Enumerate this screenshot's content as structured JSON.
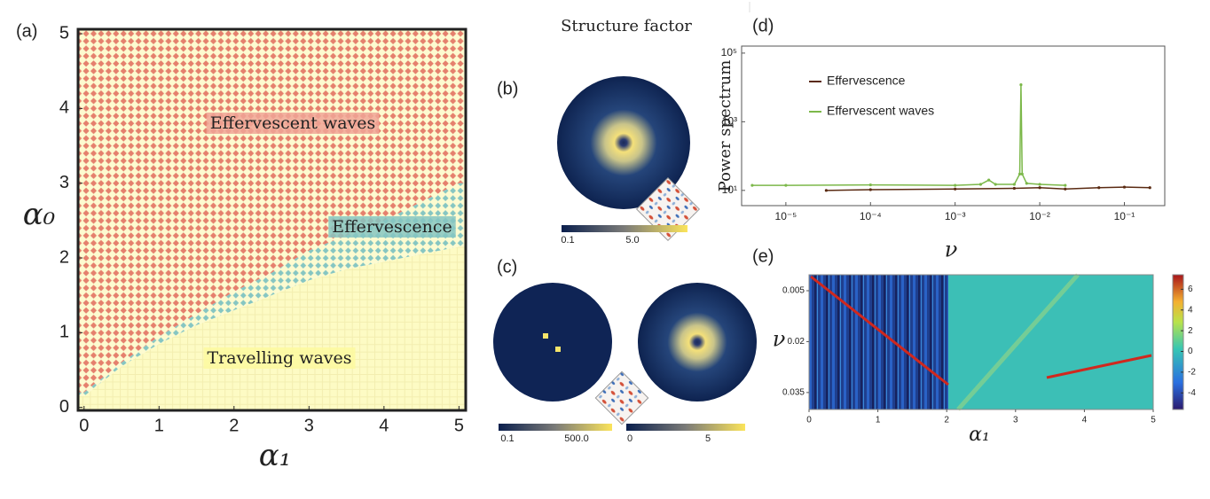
{
  "chart_data": [
    {
      "type": "phase",
      "label": "(a)",
      "xlabel": "α₁",
      "ylabel": "α₀",
      "x": [
        0,
        0.5,
        1,
        1.5,
        2,
        2.5,
        3,
        3.5,
        4,
        4.5,
        5
      ],
      "series": [
        {
          "name": "Travelling waves",
          "color": "#fbf7a8",
          "values": [
            0.15,
            0.55,
            0.85,
            1.1,
            1.3,
            1.5,
            1.7,
            1.85,
            1.95,
            2.05,
            2.15
          ]
        },
        {
          "name": "Effervescence",
          "color": "#86c6c2",
          "values": [
            0.2,
            0.6,
            0.95,
            1.25,
            1.55,
            1.8,
            2.1,
            2.3,
            2.5,
            2.75,
            3.0
          ]
        },
        {
          "name": "Effervescent waves",
          "color": "#e5806d"
        }
      ],
      "xlim": [
        -0.08,
        5.09
      ],
      "ylim": [
        -0.04,
        5.06
      ],
      "xticks": [
        0,
        1,
        2,
        3,
        4,
        5
      ],
      "yticks": [
        0,
        1,
        2,
        3,
        4,
        5
      ]
    },
    {
      "type": "line",
      "label": "(d)",
      "ylabel": "Power spectrum",
      "xlabel": "ν",
      "log_x": true,
      "log_y": true,
      "legend": "upper left",
      "series": [
        {
          "name": "Effervescence",
          "color": "#5a2a12",
          "x": [
            3e-05,
            0.0001,
            0.001,
            0.005,
            0.01,
            0.02,
            0.05,
            0.1,
            0.2
          ],
          "values": [
            10,
            10.5,
            11,
            11.5,
            12,
            11,
            12,
            12.5,
            12
          ]
        },
        {
          "name": "Effervescent waves",
          "color": "#7cb84a",
          "x": [
            4e-06,
            1e-05,
            0.0001,
            0.001,
            0.002,
            0.0025,
            0.003,
            0.005,
            0.0058,
            0.006,
            0.0062,
            0.007,
            0.01,
            0.02
          ],
          "values": [
            14,
            14,
            14.5,
            14,
            15,
            20,
            15,
            15,
            30,
            12000,
            30,
            16,
            15,
            14
          ]
        }
      ],
      "xlim": [
        3e-06,
        0.3
      ],
      "ylim": [
        3.6,
        160000
      ],
      "xticks": [
        {
          "value": 1e-05,
          "label": "10⁻⁵"
        },
        {
          "value": 0.0001,
          "label": "10⁻⁴"
        },
        {
          "value": 0.001,
          "label": "10⁻³"
        },
        {
          "value": 0.01,
          "label": "10⁻²"
        },
        {
          "value": 0.1,
          "label": "10⁻¹"
        }
      ],
      "yticks": [
        {
          "value": 10,
          "label": "10¹"
        },
        {
          "value": 1000,
          "label": "10³"
        },
        {
          "value": 100000,
          "label": "10⁵"
        }
      ]
    },
    {
      "type": "heatmap",
      "label": "(e)",
      "xlabel": "α₁",
      "ylabel": "ν",
      "y_inverted": true,
      "xlim": [
        0,
        5
      ],
      "ylim": [
        0.0003,
        0.04
      ],
      "xticks": [
        0,
        1,
        2,
        3,
        4,
        5
      ],
      "yticks": [
        0.005,
        0.02,
        0.035
      ],
      "colorbar": {
        "lim": [
          -5.6,
          7.4
        ],
        "ticks": [
          -4,
          -2,
          0,
          2,
          4,
          6
        ]
      }
    }
  ],
  "structure_factor": {
    "title": "Structure factor",
    "panels": [
      {
        "label": "(b)",
        "colorbars": [
          {
            "ticks": [
              "0.1",
              "5.0"
            ]
          }
        ]
      },
      {
        "label": "(c)",
        "colorbars": [
          {
            "ticks": [
              "0.1",
              "500.0"
            ]
          },
          {
            "ticks": [
              "0",
              "5"
            ]
          }
        ]
      }
    ]
  }
}
